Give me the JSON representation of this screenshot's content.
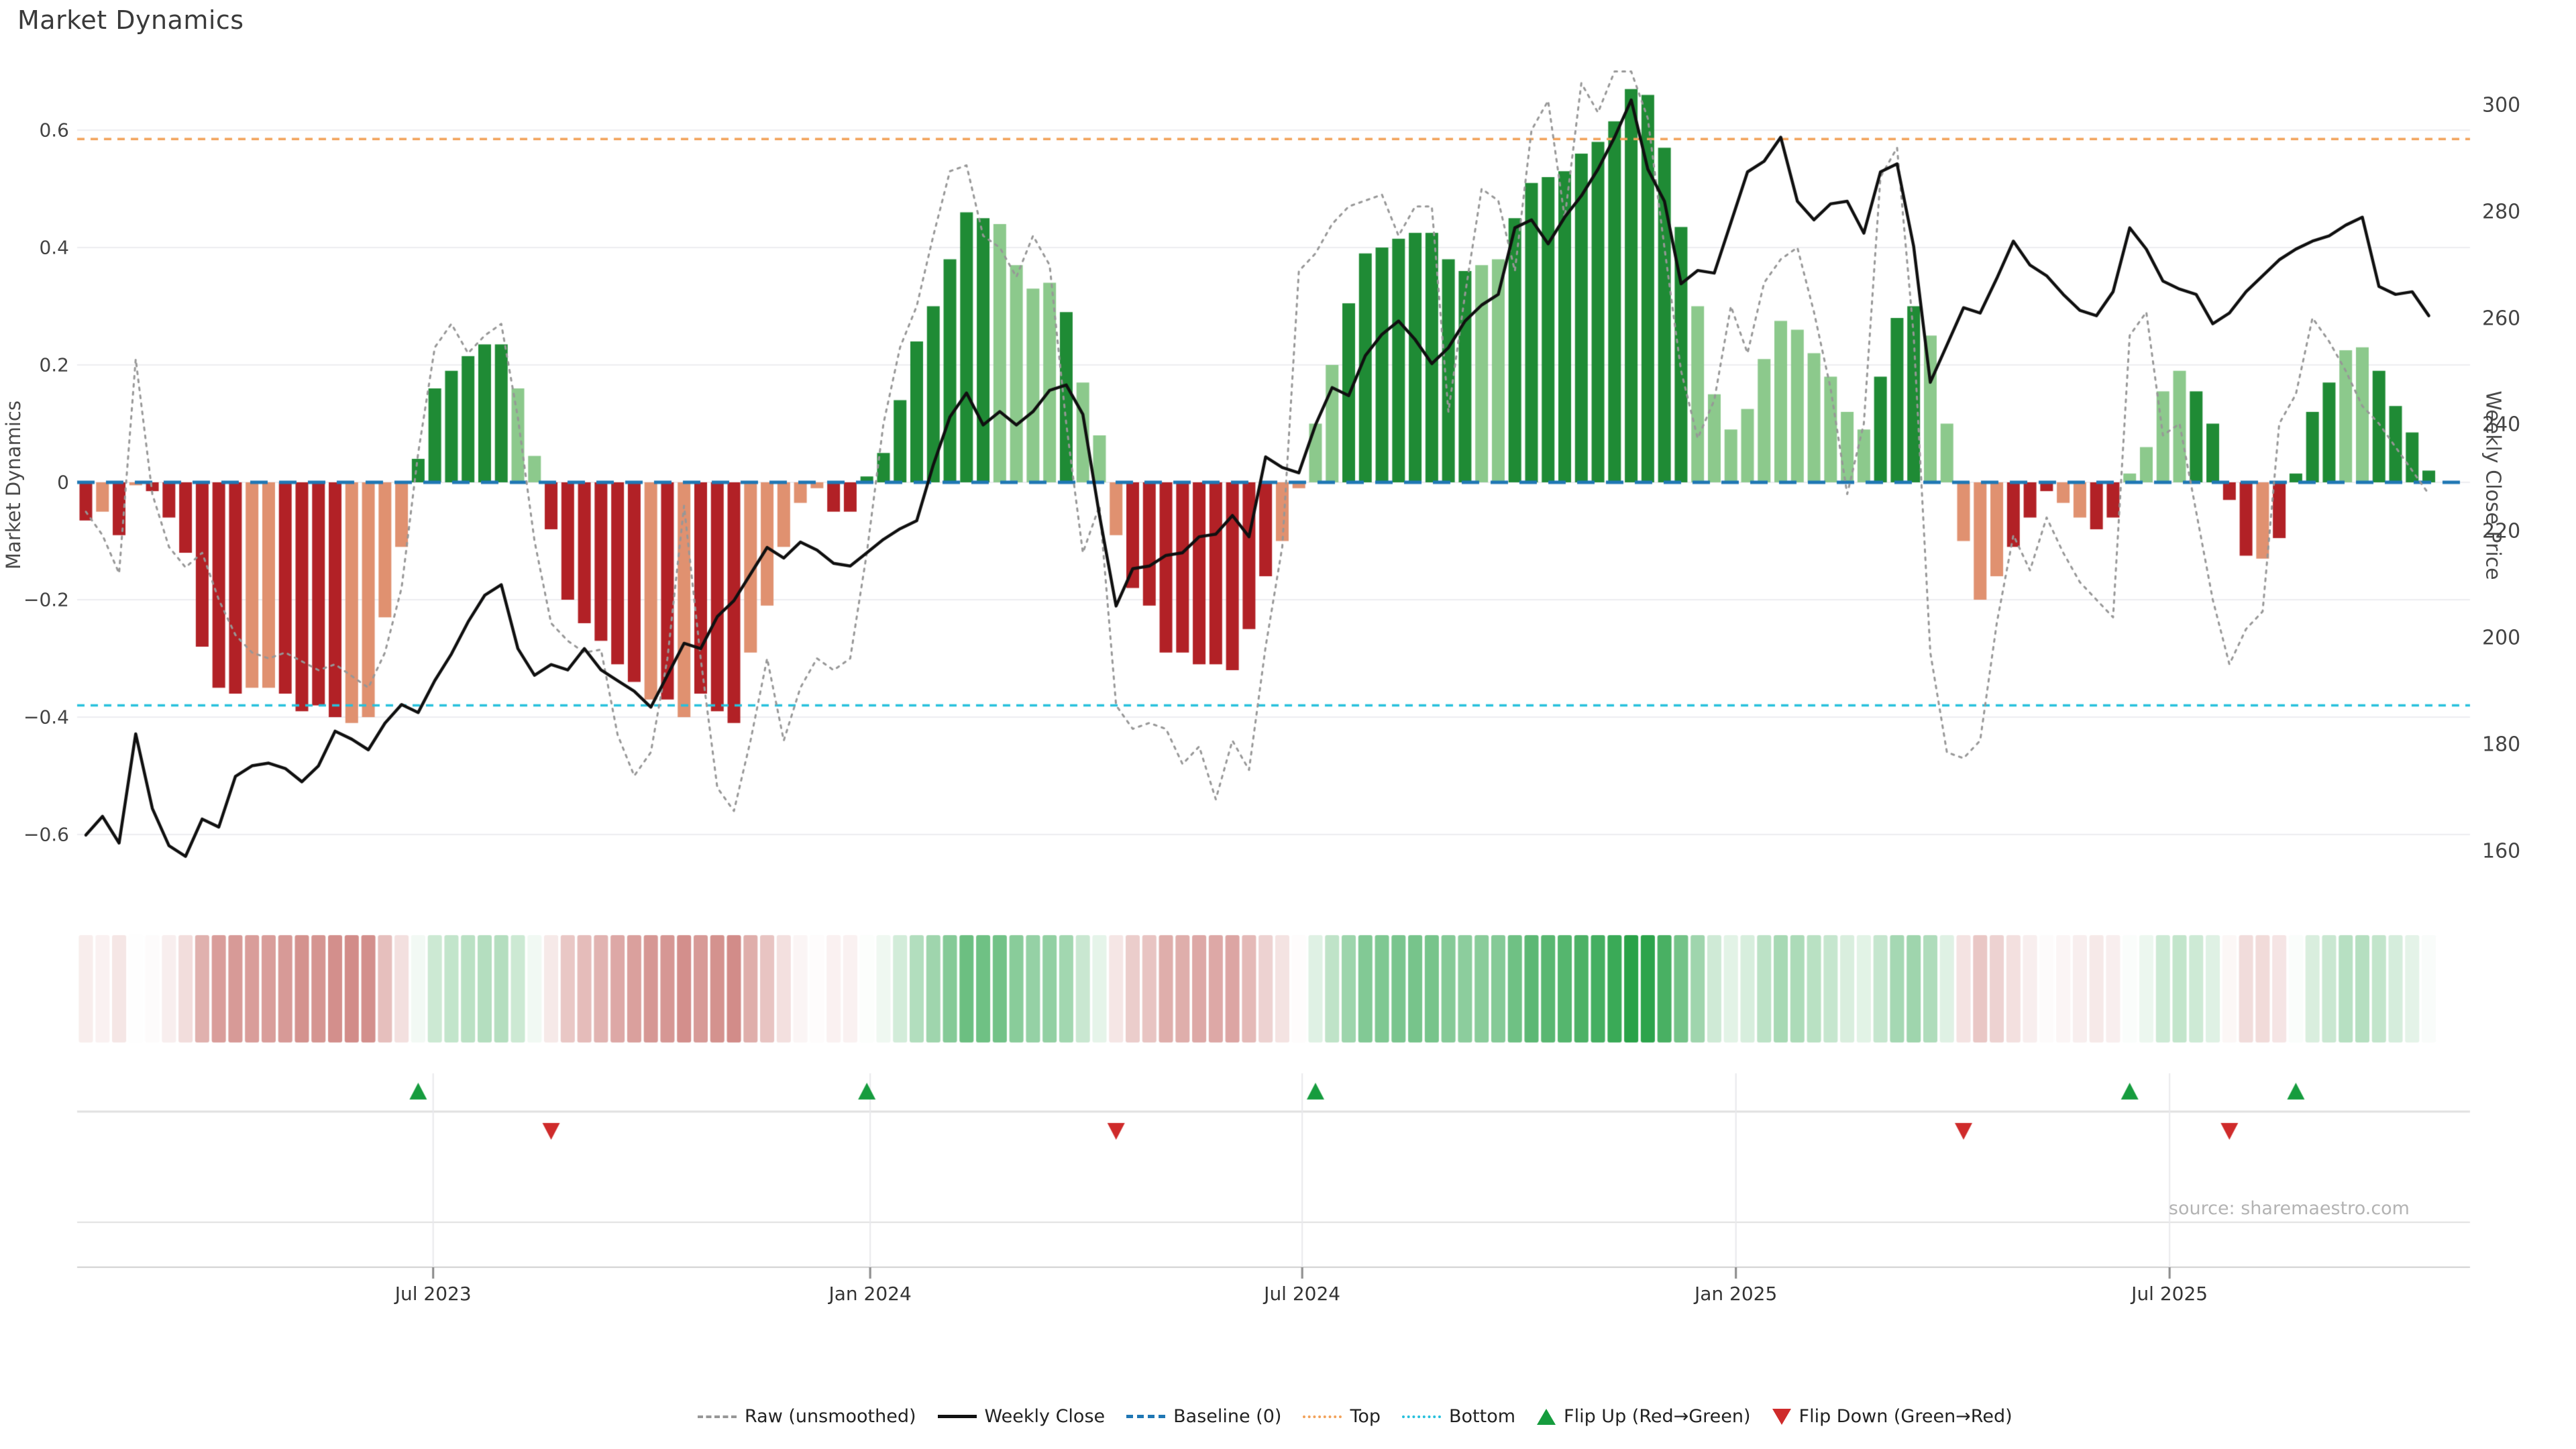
{
  "title": "Market Dynamics",
  "source_note": "source: sharemaestro.com",
  "chart_data": {
    "type": "combo",
    "title": "Market Dynamics",
    "description": "Weekly market-dynamics oscillator bars (left axis) with heatmap strip and flip markers, overlaid with raw unsmoothed oscillator (dotted) and weekly close price (right axis).",
    "left_axis": {
      "label": "Market Dynamics",
      "ticks": [
        {
          "v": 0.6,
          "label": "0.6"
        },
        {
          "v": 0.4,
          "label": "0.4"
        },
        {
          "v": 0.2,
          "label": "0.2"
        },
        {
          "v": 0,
          "label": "0"
        },
        {
          "v": -0.2,
          "label": "−0.2"
        },
        {
          "v": -0.4,
          "label": "−0.4"
        },
        {
          "v": -0.6,
          "label": "−0.6"
        }
      ]
    },
    "right_axis": {
      "label": "Weekly Close Price",
      "ticks": [
        {
          "p": 300,
          "label": "300"
        },
        {
          "p": 280,
          "label": "280"
        },
        {
          "p": 260,
          "label": "260"
        },
        {
          "p": 240,
          "label": "240"
        },
        {
          "p": 220,
          "label": "220"
        },
        {
          "p": 200,
          "label": "200"
        },
        {
          "p": 180,
          "label": "180"
        },
        {
          "p": 160,
          "label": "160"
        }
      ]
    },
    "x_axis": {
      "ticks": [
        {
          "pos": 20.9,
          "label": "Jul 2023"
        },
        {
          "pos": 47.2,
          "label": "Jan 2024"
        },
        {
          "pos": 73.2,
          "label": "Jul 2024"
        },
        {
          "pos": 99.3,
          "label": "Jan 2025"
        },
        {
          "pos": 125.4,
          "label": "Jul 2025"
        }
      ]
    },
    "reference_lines": {
      "baseline": 0,
      "top": 0.585,
      "bottom": -0.38
    },
    "oscillator": {
      "values": [
        -0.065,
        -0.05,
        -0.09,
        -0.005,
        -0.015,
        -0.06,
        -0.12,
        -0.28,
        -0.35,
        -0.36,
        -0.35,
        -0.35,
        -0.36,
        -0.39,
        -0.38,
        -0.4,
        -0.41,
        -0.4,
        -0.23,
        -0.11,
        0.04,
        0.16,
        0.19,
        0.215,
        0.235,
        0.235,
        0.16,
        0.045,
        -0.08,
        -0.2,
        -0.24,
        -0.27,
        -0.31,
        -0.34,
        -0.37,
        -0.37,
        -0.4,
        -0.36,
        -0.39,
        -0.41,
        -0.29,
        -0.21,
        -0.11,
        -0.035,
        -0.01,
        -0.05,
        -0.05,
        0.01,
        0.05,
        0.14,
        0.24,
        0.3,
        0.38,
        0.46,
        0.45,
        0.44,
        0.37,
        0.33,
        0.34,
        0.29,
        0.17,
        0.08,
        -0.09,
        -0.18,
        -0.21,
        -0.29,
        -0.29,
        -0.31,
        -0.31,
        -0.32,
        -0.25,
        -0.16,
        -0.1,
        -0.01,
        0.1,
        0.2,
        0.305,
        0.39,
        0.4,
        0.415,
        0.425,
        0.425,
        0.38,
        0.36,
        0.37,
        0.38,
        0.45,
        0.51,
        0.52,
        0.53,
        0.56,
        0.58,
        0.615,
        0.67,
        0.66,
        0.57,
        0.435,
        0.3,
        0.15,
        0.09,
        0.125,
        0.21,
        0.275,
        0.26,
        0.22,
        0.18,
        0.12,
        0.09,
        0.18,
        0.28,
        0.3,
        0.25,
        0.1,
        -0.1,
        -0.2,
        -0.16,
        -0.11,
        -0.06,
        -0.015,
        -0.035,
        -0.06,
        -0.08,
        -0.06,
        0.015,
        0.06,
        0.155,
        0.19,
        0.155,
        0.1,
        -0.03,
        -0.125,
        -0.13,
        -0.095,
        0.015,
        0.12,
        0.17,
        0.225,
        0.23,
        0.19,
        0.13,
        0.085,
        0.02
      ],
      "shade": "dldlddddddllddddllllddddddllddddddldldddlllllddddddddddlllldllldddddddddllllddddddddlldddddddddddllllllllllldddllllldddllddllllddddlddddllddddldddddllll"
    },
    "raw": [
      -0.05,
      -0.09,
      -0.155,
      0.21,
      -0.02,
      -0.11,
      -0.145,
      -0.12,
      -0.2,
      -0.26,
      -0.29,
      -0.3,
      -0.29,
      -0.305,
      -0.32,
      -0.31,
      -0.33,
      -0.35,
      -0.29,
      -0.18,
      0.05,
      0.23,
      0.27,
      0.22,
      0.25,
      0.27,
      0.11,
      -0.1,
      -0.24,
      -0.27,
      -0.29,
      -0.285,
      -0.43,
      -0.5,
      -0.46,
      -0.3,
      -0.04,
      -0.3,
      -0.52,
      -0.56,
      -0.44,
      -0.3,
      -0.44,
      -0.35,
      -0.3,
      -0.32,
      -0.3,
      -0.12,
      0.1,
      0.23,
      0.3,
      0.42,
      0.53,
      0.54,
      0.42,
      0.4,
      0.35,
      0.42,
      0.37,
      0.1,
      -0.12,
      -0.04,
      -0.38,
      -0.42,
      -0.41,
      -0.42,
      -0.48,
      -0.45,
      -0.54,
      -0.44,
      -0.49,
      -0.28,
      -0.11,
      0.36,
      0.39,
      0.44,
      0.47,
      0.48,
      0.49,
      0.42,
      0.47,
      0.47,
      0.12,
      0.32,
      0.5,
      0.48,
      0.36,
      0.6,
      0.65,
      0.45,
      0.68,
      0.63,
      0.7,
      0.7,
      0.62,
      0.4,
      0.19,
      0.075,
      0.14,
      0.3,
      0.22,
      0.34,
      0.38,
      0.4,
      0.29,
      0.16,
      -0.02,
      0.1,
      0.52,
      0.57,
      0.25,
      -0.29,
      -0.46,
      -0.47,
      -0.44,
      -0.24,
      -0.09,
      -0.15,
      -0.06,
      -0.12,
      -0.17,
      -0.2,
      -0.23,
      0.25,
      0.29,
      0.08,
      0.1,
      -0.05,
      -0.2,
      -0.31,
      -0.25,
      -0.22,
      0.1,
      0.15,
      0.28,
      0.24,
      0.19,
      0.13,
      0.1,
      0.06,
      0.02,
      -0.02
    ],
    "price": [
      163,
      166.5,
      161.5,
      182,
      168,
      161,
      159,
      166,
      164.5,
      174,
      176,
      176.5,
      175.5,
      173,
      176,
      182.5,
      181,
      179,
      184,
      187.5,
      186,
      192,
      197,
      203,
      208,
      210,
      198,
      193,
      195,
      194,
      198,
      194,
      192,
      190,
      187,
      193,
      199,
      198,
      204,
      207,
      212,
      217,
      215,
      218,
      216.5,
      214,
      213.5,
      216,
      218.5,
      220.5,
      222,
      232.5,
      241.5,
      246,
      240,
      242.5,
      240,
      242.5,
      246.5,
      247.5,
      242,
      223,
      206,
      213,
      213.5,
      215.5,
      216,
      219,
      219.5,
      223,
      219,
      234,
      232,
      231,
      240,
      247,
      245.5,
      253,
      257,
      259.5,
      256,
      251.5,
      254.5,
      259.5,
      262.5,
      264.5,
      277,
      278.5,
      274,
      279,
      283,
      288,
      294,
      301,
      288,
      282,
      266.5,
      269,
      268.5,
      278,
      287.5,
      289.5,
      294,
      282,
      278.5,
      281.5,
      282,
      276,
      287.5,
      289,
      273.5,
      248,
      255,
      262,
      261,
      267.5,
      274.5,
      270,
      268,
      264.5,
      261.5,
      260.5,
      265,
      277,
      273,
      267,
      265.5,
      264.5,
      259,
      261,
      265,
      268,
      271,
      273,
      274.5,
      275.5,
      277.5,
      279,
      266,
      264.5,
      265,
      260.5
    ],
    "flip_up_weeks": [
      20,
      47,
      74,
      123,
      133
    ],
    "flip_down_weeks": [
      28,
      62,
      113,
      129
    ],
    "heatmap": {
      "from": "oscillator values",
      "max_intensity": 0.7
    },
    "legend": [
      {
        "label": "Raw (unsmoothed)",
        "swatch": "dotted-gray"
      },
      {
        "label": "Weekly Close",
        "swatch": "solid-black"
      },
      {
        "label": "Baseline (0)",
        "swatch": "dashed-blue"
      },
      {
        "label": "Top",
        "swatch": "dotted-orange"
      },
      {
        "label": "Bottom",
        "swatch": "dotted-cyan"
      },
      {
        "label": "Flip Up (Red→Green)",
        "swatch": "triangle-up-green"
      },
      {
        "label": "Flip Down (Green→Red)",
        "swatch": "triangle-down-red"
      }
    ],
    "colors": {
      "bar_green_dark": "#1f8b35",
      "bar_green_light": "#8cc98c",
      "bar_red_dark": "#b22126",
      "bar_red_light": "#e09170",
      "baseline": "#1f77b4",
      "top_line": "#f2a25a",
      "bottom_line": "#27c0dc",
      "raw_line": "#979797",
      "price_line": "#101010",
      "grid": "#ededf1",
      "panel_grid": "#e9e9ec",
      "panel_line": "#e0e0e0",
      "axis_line": "#cfcfcf",
      "tick_mark": "#888888",
      "flip_up": "#169c3e",
      "flip_down": "#cf2b2b",
      "strip_green_base": "#1f9e40",
      "strip_red_base": "#b23b35"
    }
  }
}
